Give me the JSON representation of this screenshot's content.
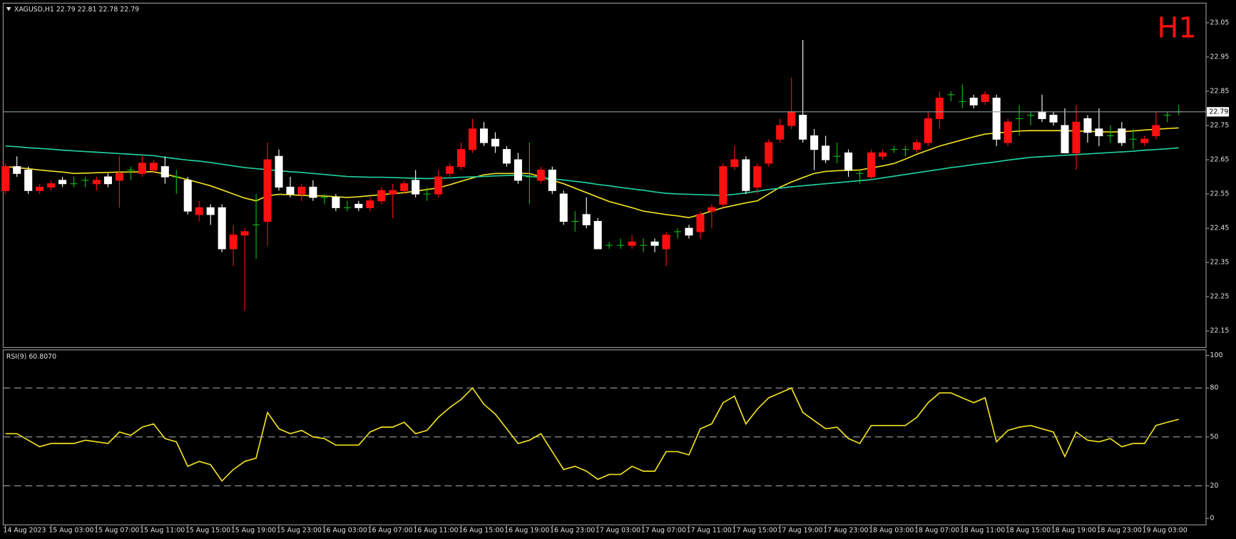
{
  "chart_data": [
    {
      "type": "candlestick",
      "title": "XAGUSD,H1  22.79 22.81 22.78 22.79",
      "timeframe_label": "H1",
      "ylim": [
        22.104,
        23.105
      ],
      "yticks": [
        22.15,
        22.25,
        22.35,
        22.45,
        22.55,
        22.65,
        22.75,
        22.85,
        22.95,
        23.05
      ],
      "last_price": 22.79,
      "colors": {
        "up": "#ff1010",
        "down": "#ffffff",
        "doji": "#10c010",
        "last_line": "#8a9a9a",
        "title": "#ff1010"
      },
      "open": [
        22.56,
        22.63,
        22.62,
        22.56,
        22.57,
        22.59,
        22.58,
        22.59,
        22.58,
        22.6,
        22.59,
        22.62,
        22.61,
        22.62,
        22.63,
        22.6,
        22.59,
        22.49,
        22.51,
        22.51,
        22.39,
        22.43,
        22.46,
        22.47,
        22.66,
        22.57,
        22.55,
        22.57,
        22.54,
        22.54,
        22.51,
        22.52,
        22.51,
        22.53,
        22.55,
        22.56,
        22.59,
        22.55,
        22.55,
        22.61,
        22.63,
        22.68,
        22.74,
        22.71,
        22.68,
        22.65,
        22.6,
        22.59,
        22.62,
        22.55,
        22.47,
        22.49,
        22.47,
        22.4,
        22.4,
        22.4,
        22.4,
        22.41,
        22.39,
        22.44,
        22.45,
        22.44,
        22.5,
        22.52,
        22.63,
        22.65,
        22.57,
        22.64,
        22.71,
        22.75,
        22.78,
        22.72,
        22.69,
        22.66,
        22.67,
        22.61,
        22.6,
        22.66,
        22.68,
        22.68,
        22.68,
        22.7,
        22.77,
        22.84,
        22.82,
        22.83,
        22.82,
        22.83,
        22.7,
        22.77,
        22.78,
        22.79,
        22.78,
        22.75,
        22.67,
        22.77,
        22.74,
        22.72,
        22.74,
        22.71,
        22.7,
        22.72,
        22.78,
        22.79
      ],
      "high": [
        22.64,
        22.66,
        22.63,
        22.58,
        22.59,
        22.6,
        22.6,
        22.6,
        22.6,
        22.61,
        22.66,
        22.63,
        22.66,
        22.65,
        22.66,
        22.62,
        22.6,
        22.53,
        22.52,
        22.52,
        22.46,
        22.45,
        22.55,
        22.7,
        22.68,
        22.6,
        22.58,
        22.59,
        22.55,
        22.55,
        22.53,
        22.53,
        22.54,
        22.57,
        22.58,
        22.59,
        22.62,
        22.57,
        22.62,
        22.64,
        22.7,
        22.77,
        22.76,
        22.73,
        22.69,
        22.67,
        22.7,
        22.63,
        22.63,
        22.56,
        22.5,
        22.54,
        22.48,
        22.41,
        22.42,
        22.43,
        22.42,
        22.42,
        22.44,
        22.45,
        22.46,
        22.5,
        22.52,
        22.64,
        22.69,
        22.66,
        22.64,
        22.71,
        22.77,
        22.89,
        23.0,
        22.74,
        22.72,
        22.7,
        22.68,
        22.62,
        22.68,
        22.68,
        22.69,
        22.69,
        22.71,
        22.79,
        22.85,
        22.85,
        22.87,
        22.84,
        22.85,
        22.84,
        22.77,
        22.81,
        22.79,
        22.84,
        22.79,
        22.8,
        22.81,
        22.78,
        22.8,
        22.75,
        22.76,
        22.74,
        22.72,
        22.79,
        22.79,
        22.81
      ],
      "low": [
        22.55,
        22.6,
        22.55,
        22.55,
        22.56,
        22.57,
        22.57,
        22.57,
        22.56,
        22.57,
        22.51,
        22.59,
        22.6,
        22.61,
        22.58,
        22.55,
        22.49,
        22.47,
        22.46,
        22.38,
        22.34,
        22.21,
        22.36,
        22.4,
        22.56,
        22.54,
        22.53,
        22.53,
        22.52,
        22.5,
        22.5,
        22.5,
        22.5,
        22.52,
        22.48,
        22.55,
        22.54,
        22.53,
        22.54,
        22.6,
        22.62,
        22.67,
        22.69,
        22.67,
        22.63,
        22.58,
        22.52,
        22.58,
        22.55,
        22.46,
        22.44,
        22.45,
        22.39,
        22.39,
        22.39,
        22.39,
        22.38,
        22.38,
        22.34,
        22.42,
        22.42,
        22.42,
        22.45,
        22.51,
        22.62,
        22.55,
        22.55,
        22.63,
        22.7,
        22.74,
        22.7,
        22.62,
        22.64,
        22.64,
        22.6,
        22.58,
        22.59,
        22.65,
        22.67,
        22.66,
        22.67,
        22.69,
        22.74,
        22.82,
        22.8,
        22.8,
        22.81,
        22.69,
        22.69,
        22.72,
        22.75,
        22.76,
        22.75,
        22.67,
        22.62,
        22.7,
        22.69,
        22.7,
        22.69,
        22.68,
        22.69,
        22.71,
        22.76,
        22.78
      ],
      "close": [
        22.63,
        22.61,
        22.56,
        22.57,
        22.58,
        22.58,
        22.58,
        22.59,
        22.59,
        22.58,
        22.61,
        22.62,
        22.64,
        22.64,
        22.6,
        22.6,
        22.5,
        22.51,
        22.49,
        22.39,
        22.43,
        22.44,
        22.46,
        22.65,
        22.57,
        22.55,
        22.57,
        22.54,
        22.54,
        22.51,
        22.51,
        22.51,
        22.53,
        22.56,
        22.56,
        22.58,
        22.55,
        22.55,
        22.6,
        22.63,
        22.68,
        22.74,
        22.7,
        22.69,
        22.64,
        22.59,
        22.6,
        22.62,
        22.56,
        22.47,
        22.47,
        22.46,
        22.39,
        22.4,
        22.4,
        22.41,
        22.4,
        22.4,
        22.43,
        22.44,
        22.43,
        22.49,
        22.51,
        22.63,
        22.65,
        22.56,
        22.63,
        22.7,
        22.75,
        22.79,
        22.71,
        22.68,
        22.65,
        22.66,
        22.62,
        22.61,
        22.67,
        22.67,
        22.68,
        22.68,
        22.7,
        22.77,
        22.83,
        22.84,
        22.82,
        22.81,
        22.84,
        22.71,
        22.76,
        22.77,
        22.78,
        22.77,
        22.76,
        22.67,
        22.76,
        22.73,
        22.72,
        22.72,
        22.7,
        22.71,
        22.71,
        22.75,
        22.78,
        22.79
      ],
      "overlays": [
        {
          "color": "#f0e020",
          "values": [
            22.63,
            22.627,
            22.624,
            22.62,
            22.617,
            22.614,
            22.61,
            22.611,
            22.612,
            22.613,
            22.614,
            22.614,
            22.615,
            22.615,
            22.608,
            22.6,
            22.592,
            22.583,
            22.574,
            22.562,
            22.55,
            22.538,
            22.53,
            22.545,
            22.549,
            22.548,
            22.546,
            22.545,
            22.544,
            22.542,
            22.54,
            22.542,
            22.545,
            22.548,
            22.551,
            22.554,
            22.558,
            22.563,
            22.568,
            22.577,
            22.587,
            22.597,
            22.606,
            22.61,
            22.61,
            22.61,
            22.61,
            22.6,
            22.59,
            22.58,
            22.567,
            22.554,
            22.541,
            22.528,
            22.519,
            22.51,
            22.5,
            22.495,
            22.49,
            22.486,
            22.481,
            22.49,
            22.5,
            22.51,
            22.517,
            22.524,
            22.53,
            22.55,
            22.57,
            22.585,
            22.598,
            22.61,
            22.616,
            22.618,
            22.619,
            22.62,
            22.626,
            22.632,
            22.639,
            22.652,
            22.666,
            22.678,
            22.69,
            22.699,
            22.708,
            22.717,
            22.725,
            22.728,
            22.731,
            22.734,
            22.735,
            22.735,
            22.735,
            22.735,
            22.734,
            22.733,
            22.732,
            22.731,
            22.732,
            22.734,
            22.737,
            22.739,
            22.741,
            22.743
          ]
        },
        {
          "color": "#20d0a0",
          "values": [
            22.69,
            22.688,
            22.685,
            22.683,
            22.681,
            22.678,
            22.676,
            22.674,
            22.672,
            22.67,
            22.668,
            22.666,
            22.664,
            22.662,
            22.657,
            22.653,
            22.649,
            22.646,
            22.642,
            22.637,
            22.632,
            22.627,
            22.624,
            22.621,
            22.618,
            22.615,
            22.613,
            22.61,
            22.607,
            22.604,
            22.601,
            22.6,
            22.599,
            22.599,
            22.598,
            22.597,
            22.596,
            22.595,
            22.596,
            22.597,
            22.599,
            22.6,
            22.601,
            22.603,
            22.604,
            22.605,
            22.602,
            22.598,
            22.594,
            22.591,
            22.587,
            22.583,
            22.578,
            22.574,
            22.569,
            22.565,
            22.561,
            22.556,
            22.552,
            22.55,
            22.549,
            22.548,
            22.547,
            22.546,
            22.549,
            22.553,
            22.558,
            22.563,
            22.567,
            22.571,
            22.574,
            22.577,
            22.58,
            22.583,
            22.586,
            22.589,
            22.592,
            22.597,
            22.602,
            22.607,
            22.612,
            22.617,
            22.622,
            22.627,
            22.631,
            22.636,
            22.64,
            22.644,
            22.649,
            22.653,
            22.657,
            22.659,
            22.661,
            22.663,
            22.665,
            22.667,
            22.669,
            22.671,
            22.673,
            22.675,
            22.678,
            22.68,
            22.682,
            22.685
          ]
        }
      ]
    },
    {
      "type": "line",
      "title": "RSI(9) 60.8070",
      "color": "#f0e020",
      "level_color": "#a0a0a0",
      "ylim": [
        -3.4,
        102.9
      ],
      "yticks": [
        0,
        20,
        50,
        80,
        100
      ],
      "levels": [
        20,
        50,
        80
      ],
      "categories": [
        "14 Aug 2023",
        null,
        null,
        null,
        "15 Aug 03:00",
        null,
        null,
        null,
        "15 Aug 07:00",
        null,
        null,
        null,
        "15 Aug 11:00",
        null,
        null,
        null,
        "15 Aug 15:00",
        null,
        null,
        null,
        "15 Aug 19:00",
        null,
        null,
        null,
        "15 Aug 23:00",
        null,
        null,
        null,
        "16 Aug 03:00",
        null,
        null,
        null,
        "16 Aug 07:00",
        null,
        null,
        null,
        "16 Aug 11:00",
        null,
        null,
        null,
        "16 Aug 15:00",
        null,
        null,
        null,
        "16 Aug 19:00",
        null,
        null,
        null,
        "16 Aug 23:00",
        null,
        null,
        null,
        "17 Aug 03:00",
        null,
        null,
        null,
        "17 Aug 07:00",
        null,
        null,
        null,
        "17 Aug 11:00",
        null,
        null,
        null,
        "17 Aug 15:00",
        null,
        null,
        null,
        "17 Aug 19:00",
        null,
        null,
        null,
        "17 Aug 23:00",
        null,
        null,
        null,
        "18 Aug 03:00",
        null,
        null,
        null,
        "18 Aug 07:00",
        null,
        null,
        null,
        "18 Aug 11:00",
        null,
        null,
        null,
        "18 Aug 15:00",
        null,
        null,
        null,
        "18 Aug 19:00",
        null,
        null,
        null,
        "18 Aug 23:00",
        null,
        null,
        null,
        "19 Aug 03:00",
        null,
        null,
        null
      ],
      "values": [
        52,
        52,
        48,
        44,
        46,
        46,
        46,
        48,
        47,
        46,
        53,
        51,
        56,
        58,
        49,
        47,
        32,
        35,
        33,
        23,
        30,
        35,
        37,
        65,
        55,
        52,
        54,
        50,
        49,
        45,
        45,
        45,
        53,
        56,
        56,
        59,
        52,
        54,
        62,
        68,
        73,
        80,
        70,
        64,
        55,
        46,
        48,
        52,
        41,
        30,
        32,
        29,
        24,
        27,
        27,
        32,
        29,
        29,
        41,
        41,
        39,
        55,
        58,
        71,
        75,
        58,
        67,
        74,
        77,
        80,
        65,
        60,
        55,
        56,
        49,
        46,
        57,
        57,
        57,
        57,
        62,
        71,
        77,
        77,
        74,
        71,
        74,
        47,
        54,
        56,
        57,
        55,
        53,
        38,
        53,
        48,
        47,
        49,
        44,
        46,
        46,
        57,
        59,
        60.807
      ]
    }
  ]
}
